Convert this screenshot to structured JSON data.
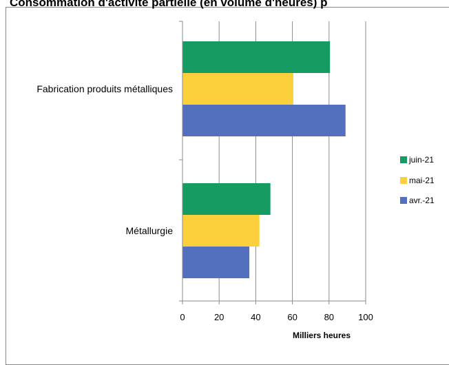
{
  "chart_data": {
    "type": "bar",
    "orientation": "horizontal",
    "title": "Consommation d'activité partielle (en volume d'heures) p",
    "xlabel": "Milliers heures",
    "ylabel": "",
    "xlim": [
      0,
      100
    ],
    "xticks": [
      0,
      20,
      40,
      60,
      80,
      100
    ],
    "grid": true,
    "legend_position": "right",
    "categories": [
      "Fabrication produits métalliques",
      "Métallurgie"
    ],
    "series": [
      {
        "name": "juin-21",
        "color": "#169C62",
        "values": [
          80.5,
          48
        ]
      },
      {
        "name": "mai-21",
        "color": "#FCCF3C",
        "values": [
          60.5,
          42
        ]
      },
      {
        "name": "avr.-21",
        "color": "#5270BE",
        "values": [
          89,
          36.5
        ]
      }
    ]
  }
}
